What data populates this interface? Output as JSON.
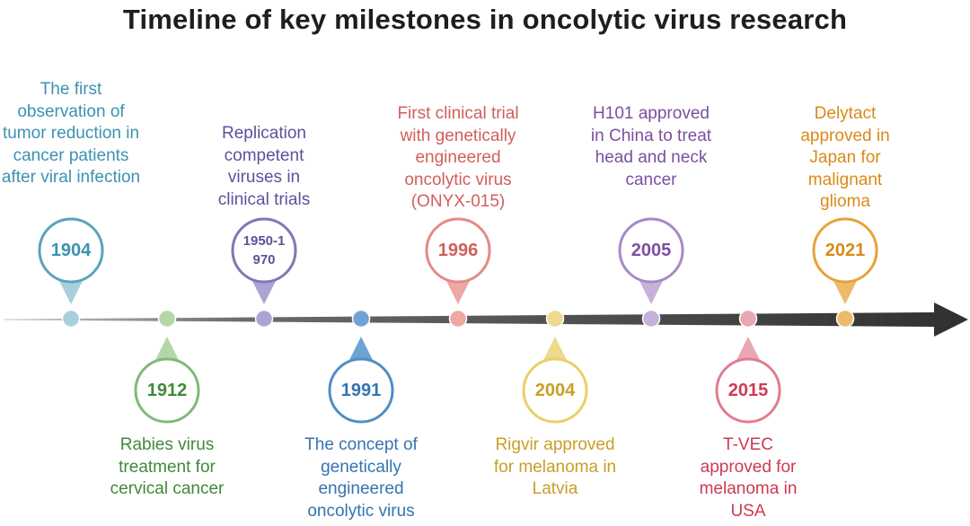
{
  "title": "Timeline of key milestones in oncolytic virus research",
  "milestones": [
    {
      "year": "1904",
      "position": "above",
      "color": "#5aa3bd",
      "text_color": "#3c92b1",
      "fill": "#a9cfdc",
      "description": "The first observation of tumor reduction in cancer patients after viral infection"
    },
    {
      "year": "1912",
      "position": "below",
      "color": "#7fb97a",
      "text_color": "#3e8a3a",
      "fill": "#b5d7a8",
      "description": "Rabies virus treatment for cervical cancer"
    },
    {
      "year": "1950-1970",
      "position": "above",
      "color": "#7f78b5",
      "text_color": "#5a539a",
      "fill": "#aaa5d2",
      "description": "Replication competent viruses in clinical trials"
    },
    {
      "year": "1991",
      "position": "below",
      "color": "#4f8fc6",
      "text_color": "#3474b0",
      "fill": "#6ea3d4",
      "description": "The concept of genetically engineered oncolytic virus"
    },
    {
      "year": "1996",
      "position": "above",
      "color": "#e48a87",
      "text_color": "#d15f5b",
      "fill": "#eea7a3",
      "description": "First clinical trial with genetically engineered oncolytic virus (ONYX-015)"
    },
    {
      "year": "2004",
      "position": "below",
      "color": "#e9cf68",
      "text_color": "#c89f26",
      "fill": "#eed98d",
      "description": "Rigvir approved for melanoma in Latvia"
    },
    {
      "year": "2005",
      "position": "above",
      "color": "#a889c4",
      "text_color": "#7c4f9f",
      "fill": "#c6b1dc",
      "description": "H101 approved in China to treat head and neck cancer"
    },
    {
      "year": "2015",
      "position": "below",
      "color": "#e07d8f",
      "text_color": "#cf3a52",
      "fill": "#e9a7b3",
      "description": "T-VEC approved for melanoma in USA"
    },
    {
      "year": "2021",
      "position": "above",
      "color": "#e8a23a",
      "text_color": "#d98a17",
      "fill": "#eeba6a",
      "description": "Delytact approved in Japan for malignant glioma"
    }
  ]
}
